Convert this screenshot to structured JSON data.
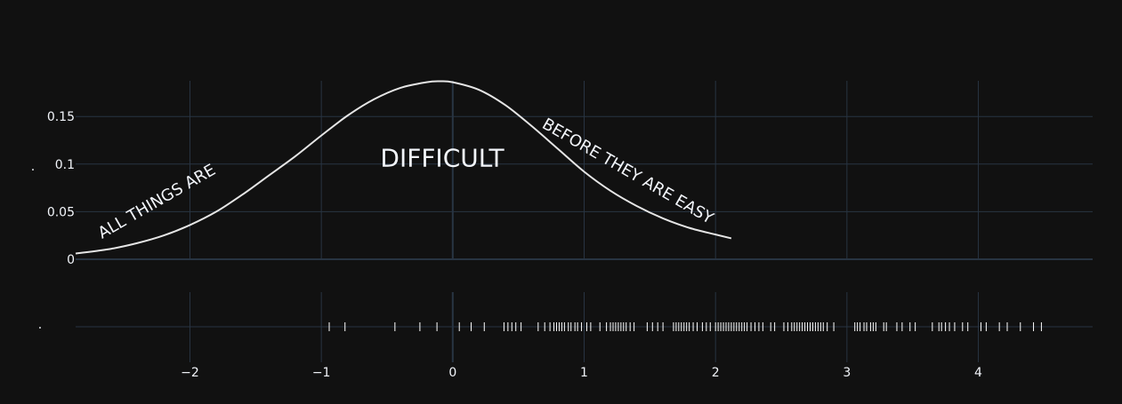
{
  "chart_data": {
    "type": "line",
    "theme": {
      "background": "#111111",
      "grid": "#283442",
      "line": "#e5e5e5",
      "rug": "#ffffff",
      "text": "#f2f5fa"
    },
    "xlim": [
      -2.87,
      4.87
    ],
    "x_ticks": [
      -2,
      -1,
      0,
      1,
      2,
      3,
      4
    ],
    "x_tick_labels": [
      "−2",
      "−1",
      "0",
      "1",
      "2",
      "3",
      "4"
    ],
    "ylim": [
      0,
      0.1875
    ],
    "y_ticks": [
      0,
      0.05,
      0.1,
      0.15
    ],
    "y_tick_labels": [
      "0",
      "0.05",
      "0.1",
      "0.15"
    ],
    "ylabel": ".",
    "rug_ylabel": ".",
    "series": [
      {
        "kind": "density-curve",
        "x": [
          -2.87,
          -2.6,
          -2.4,
          -2.2,
          -2.0,
          -1.8,
          -1.6,
          -1.4,
          -1.2,
          -1.0,
          -0.8,
          -0.6,
          -0.4,
          -0.2,
          -0.1,
          0.0,
          0.2,
          0.4,
          0.6,
          0.8,
          1.0,
          1.2,
          1.4,
          1.6,
          1.8,
          2.0,
          2.12
        ],
        "y": [
          0.006,
          0.011,
          0.017,
          0.025,
          0.036,
          0.05,
          0.068,
          0.088,
          0.108,
          0.13,
          0.151,
          0.168,
          0.18,
          0.186,
          0.187,
          0.186,
          0.178,
          0.162,
          0.14,
          0.116,
          0.092,
          0.072,
          0.056,
          0.043,
          0.033,
          0.026,
          0.022
        ]
      },
      {
        "kind": "rug",
        "values": [
          -0.94,
          -0.82,
          -0.44,
          -0.25,
          -0.12,
          0.05,
          0.14,
          0.24,
          0.39,
          0.42,
          0.45,
          0.48,
          0.52,
          0.65,
          0.7,
          0.74,
          0.77,
          0.79,
          0.81,
          0.83,
          0.85,
          0.88,
          0.9,
          0.93,
          0.95,
          0.98,
          1.02,
          1.05,
          1.12,
          1.17,
          1.2,
          1.22,
          1.24,
          1.26,
          1.28,
          1.3,
          1.32,
          1.35,
          1.38,
          1.48,
          1.52,
          1.56,
          1.6,
          1.68,
          1.7,
          1.72,
          1.74,
          1.76,
          1.78,
          1.8,
          1.83,
          1.86,
          1.9,
          1.93,
          1.96,
          2.0,
          2.02,
          2.04,
          2.06,
          2.08,
          2.1,
          2.12,
          2.14,
          2.16,
          2.18,
          2.2,
          2.22,
          2.24,
          2.27,
          2.3,
          2.33,
          2.36,
          2.42,
          2.45,
          2.52,
          2.55,
          2.58,
          2.6,
          2.62,
          2.64,
          2.66,
          2.68,
          2.7,
          2.72,
          2.74,
          2.76,
          2.78,
          2.8,
          2.82,
          2.85,
          2.9,
          3.06,
          3.08,
          3.1,
          3.13,
          3.15,
          3.18,
          3.2,
          3.22,
          3.28,
          3.3,
          3.38,
          3.42,
          3.48,
          3.52,
          3.65,
          3.7,
          3.72,
          3.75,
          3.78,
          3.82,
          3.88,
          3.92,
          4.02,
          4.06,
          4.16,
          4.22,
          4.32,
          4.42,
          4.48
        ]
      }
    ],
    "annotations": [
      {
        "text": "ALL THINGS ARE",
        "x": -2.25,
        "y": 0.06,
        "angle": -30,
        "size": 18
      },
      {
        "text": "DIFFICULT",
        "x": -0.08,
        "y": 0.105,
        "angle": 0,
        "size": 28
      },
      {
        "text": "BEFORE THEY ARE EASY",
        "x": 1.33,
        "y": 0.092,
        "angle": 30,
        "size": 18
      }
    ]
  }
}
